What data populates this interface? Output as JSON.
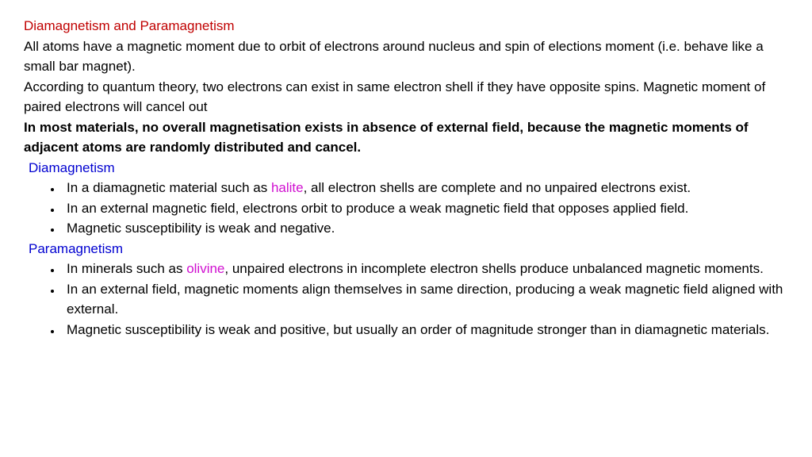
{
  "title": "Diamagnetism and Paramagnetism",
  "intro1": "All atoms have a magnetic moment due to orbit of electrons around nucleus and spin of elections moment (i.e. behave like a small bar magnet).",
  "intro2": "According to quantum theory, two electrons can exist in same electron shell if they have opposite spins. Magnetic moment of paired electrons will cancel out",
  "bold_statement": "In most materials, no overall magnetisation exists in absence of external field, because the magnetic moments of adjacent atoms are randomly distributed and cancel.",
  "sec1": {
    "heading": "Diamagnetism",
    "b1_pre": "In a diamagnetic material such as ",
    "b1_mineral": "halite",
    "b1_post": ", all electron shells are complete and no unpaired electrons exist.",
    "b2": "In an external magnetic field, electrons orbit to produce a weak magnetic field that opposes applied field.",
    "b3": "Magnetic susceptibility is weak and negative."
  },
  "sec2": {
    "heading": "Paramagnetism",
    "b1_pre": "In minerals such as ",
    "b1_mineral": "olivine",
    "b1_post": ", unpaired electrons in incomplete electron shells produce unbalanced magnetic moments.",
    "b2": "In an external field, magnetic moments align themselves in same direction, producing a weak magnetic field aligned with external.",
    "b3": "Magnetic susceptibility is weak and positive, but usually an order of magnitude stronger than in diamagnetic materials."
  },
  "colors": {
    "title": "#c00000",
    "subtitle": "#0000d0",
    "mineral": "#d010d0",
    "text": "#000000",
    "background": "#ffffff"
  }
}
